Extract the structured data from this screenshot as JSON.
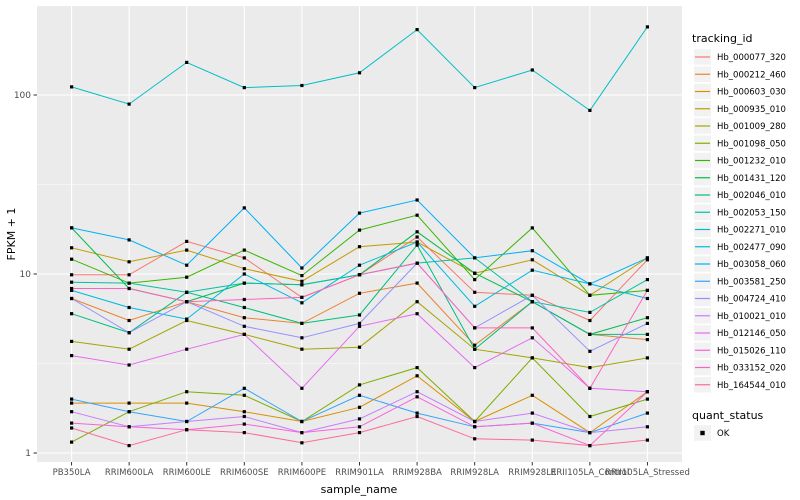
{
  "chart_data": {
    "type": "line",
    "title": "",
    "xlabel": "sample_name",
    "ylabel": "FPKM + 1",
    "y_scale": "log10",
    "ylim": [
      1,
      300
    ],
    "y_ticks": [
      1,
      10,
      100
    ],
    "y_minor_ticks": [
      3.162,
      31.62
    ],
    "grid": true,
    "legend_title": "tracking_id",
    "legend_position": "right",
    "marker_shape": "black-square",
    "categories": [
      "PB350LA",
      "RRIM600LA",
      "RRIM600LE",
      "RRIM600SE",
      "RRIM600PE",
      "RRIM901LA",
      "RRIM928BA",
      "RRIM928LA",
      "RRIM928LE",
      "RRII105LA_Control",
      "RRII105LA_Stressed"
    ],
    "series": [
      {
        "name": "Hb_000077_320",
        "color": "#F8766D",
        "values": [
          9.9,
          9.9,
          15.2,
          12.3,
          7.4,
          9.9,
          16.1,
          7.9,
          7.6,
          5.5,
          12.0
        ]
      },
      {
        "name": "Hb_000212_460",
        "color": "#EA8331",
        "values": [
          7.3,
          5.5,
          7.0,
          5.7,
          5.3,
          7.8,
          8.9,
          4.0,
          7.0,
          4.6,
          4.3
        ]
      },
      {
        "name": "Hb_000603_030",
        "color": "#D89000",
        "values": [
          1.9,
          1.9,
          1.9,
          1.7,
          1.5,
          1.8,
          2.7,
          1.5,
          2.1,
          1.3,
          2.2
        ]
      },
      {
        "name": "Hb_000935_010",
        "color": "#C09B00",
        "values": [
          14.0,
          11.7,
          13.6,
          10.7,
          9.1,
          14.2,
          15.1,
          10.1,
          12.0,
          7.6,
          12.3
        ]
      },
      {
        "name": "Hb_001009_280",
        "color": "#A3A500",
        "values": [
          4.2,
          3.8,
          5.5,
          4.6,
          3.8,
          3.9,
          7.0,
          3.8,
          3.4,
          3.0,
          3.4
        ]
      },
      {
        "name": "Hb_001098_050",
        "color": "#7CAE00",
        "values": [
          1.15,
          1.7,
          2.2,
          2.1,
          1.5,
          2.4,
          3.0,
          1.5,
          3.4,
          1.6,
          2.0
        ]
      },
      {
        "name": "Hb_001232_010",
        "color": "#39B600",
        "values": [
          12.1,
          8.9,
          9.6,
          13.6,
          9.8,
          17.6,
          21.3,
          9.3,
          18.1,
          7.6,
          8.1
        ]
      },
      {
        "name": "Hb_001431_120",
        "color": "#00BB4E",
        "values": [
          18.1,
          8.3,
          7.0,
          8.9,
          8.7,
          9.9,
          17.2,
          10.1,
          7.0,
          4.6,
          5.7
        ]
      },
      {
        "name": "Hb_002046_010",
        "color": "#00BF7D",
        "values": [
          6.0,
          4.7,
          7.9,
          6.5,
          5.3,
          5.9,
          14.5,
          3.8,
          7.0,
          4.6,
          4.6
        ]
      },
      {
        "name": "Hb_002053_150",
        "color": "#00C1A3",
        "values": [
          9.0,
          8.9,
          7.9,
          8.9,
          8.7,
          9.9,
          11.5,
          12.3,
          7.0,
          6.1,
          9.3
        ]
      },
      {
        "name": "Hb_002271_010",
        "color": "#00BFC4",
        "values": [
          111,
          89,
          152,
          110,
          113,
          133,
          232,
          110,
          138,
          82,
          240
        ]
      },
      {
        "name": "Hb_002477_090",
        "color": "#00BAE0",
        "values": [
          8.1,
          6.5,
          5.6,
          10.0,
          6.9,
          11.2,
          15.1,
          6.6,
          10.5,
          8.8,
          7.3
        ]
      },
      {
        "name": "Hb_003058_060",
        "color": "#00B0F6",
        "values": [
          18.1,
          15.5,
          11.2,
          23.4,
          10.8,
          21.9,
          25.9,
          12.3,
          13.5,
          8.8,
          12.3
        ]
      },
      {
        "name": "Hb_003581_250",
        "color": "#35A2FF",
        "values": [
          2.0,
          1.7,
          1.5,
          2.3,
          1.5,
          2.1,
          1.67,
          1.4,
          1.47,
          1.3,
          1.67
        ]
      },
      {
        "name": "Hb_004724_410",
        "color": "#9590FF",
        "values": [
          7.3,
          4.7,
          7.0,
          5.1,
          4.4,
          5.3,
          11.5,
          5.0,
          7.6,
          3.7,
          5.3
        ]
      },
      {
        "name": "Hb_010021_010",
        "color": "#C77CFF",
        "values": [
          1.7,
          1.4,
          1.5,
          1.6,
          1.3,
          1.55,
          2.2,
          1.5,
          1.67,
          1.3,
          1.4
        ]
      },
      {
        "name": "Hb_012146_050",
        "color": "#E76BF3",
        "values": [
          3.5,
          3.1,
          3.8,
          4.6,
          2.3,
          5.1,
          6.0,
          3.0,
          4.4,
          2.3,
          2.2
        ]
      },
      {
        "name": "Hb_015026_110",
        "color": "#FA62DB",
        "values": [
          1.47,
          1.4,
          1.35,
          1.45,
          1.3,
          1.4,
          2.06,
          1.4,
          1.47,
          1.1,
          2.2
        ]
      },
      {
        "name": "Hb_033152_020",
        "color": "#FF62BC",
        "values": [
          8.3,
          8.3,
          7.0,
          7.2,
          7.4,
          9.9,
          11.5,
          5.0,
          5.0,
          2.3,
          8.1
        ]
      },
      {
        "name": "Hb_164544_010",
        "color": "#FF6A98",
        "values": [
          1.38,
          1.1,
          1.35,
          1.3,
          1.14,
          1.3,
          1.6,
          1.2,
          1.18,
          1.1,
          1.18
        ]
      }
    ],
    "quant_status": {
      "title": "quant_status",
      "items": [
        {
          "label": "OK"
        }
      ]
    }
  },
  "colors": {
    "panel_bg": "#EBEBEB",
    "grid": "#FFFFFF",
    "tick_mark": "#333333",
    "tick_label": "#4D4D4D",
    "axis_title": "#000000",
    "marker": "#000000",
    "legend_key_bg": "#F2F2F2"
  }
}
